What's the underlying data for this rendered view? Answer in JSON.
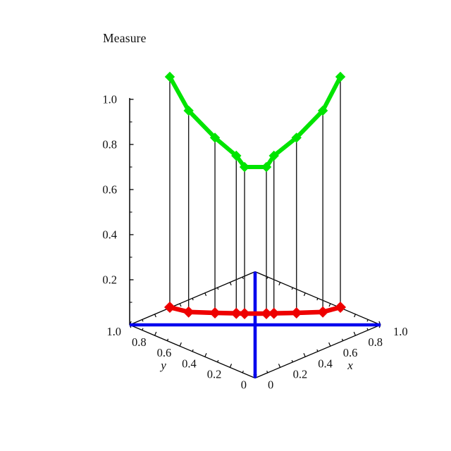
{
  "chart_data": {
    "type": "line",
    "projection": "3d",
    "title": "Measure",
    "axes": {
      "x": {
        "label": "x",
        "range": [
          0,
          1
        ],
        "tick_values": [
          0,
          0.2,
          0.4,
          0.6,
          0.8,
          1.0
        ],
        "tick_labels": [
          "0",
          "0.2",
          "0.4",
          "0.6",
          "0.8",
          "1.0"
        ],
        "minor_tick_step": 0.1
      },
      "y": {
        "label": "y",
        "range": [
          0,
          1
        ],
        "tick_values": [
          0,
          0.2,
          0.4,
          0.6,
          0.8,
          1.0
        ],
        "tick_labels": [
          "0",
          "0.2",
          "0.4",
          "0.6",
          "0.8",
          "1.0"
        ],
        "minor_tick_step": 0.1
      },
      "z": {
        "label": "Measure",
        "range": [
          0,
          1.0
        ],
        "tick_values": [
          0.2,
          0.4,
          0.6,
          0.8,
          1.0
        ],
        "tick_labels": [
          "0.2",
          "0.4",
          "0.6",
          "0.8",
          "1.0"
        ],
        "minor_tick_values": [
          0.1,
          0.3,
          0.5,
          0.7,
          0.9
        ]
      }
    },
    "series": [
      {
        "name": "measure-curve",
        "color": "#00E400",
        "marker": "diamond",
        "points": [
          {
            "x": 0.16,
            "y": 0.84,
            "z": 1.1
          },
          {
            "x": 0.235,
            "y": 0.765,
            "z": 0.95
          },
          {
            "x": 0.34,
            "y": 0.66,
            "z": 0.83
          },
          {
            "x": 0.425,
            "y": 0.575,
            "z": 0.75
          },
          {
            "x": 0.458,
            "y": 0.542,
            "z": 0.7
          },
          {
            "x": 0.545,
            "y": 0.455,
            "z": 0.7
          },
          {
            "x": 0.575,
            "y": 0.425,
            "z": 0.75
          },
          {
            "x": 0.665,
            "y": 0.335,
            "z": 0.83
          },
          {
            "x": 0.77,
            "y": 0.23,
            "z": 0.95
          },
          {
            "x": 0.84,
            "y": 0.16,
            "z": 1.1
          }
        ]
      },
      {
        "name": "base-curve",
        "color": "#EE0000",
        "marker": "diamond",
        "points": [
          {
            "x": 0.16,
            "y": 0.84,
            "z": 0.078
          },
          {
            "x": 0.235,
            "y": 0.765,
            "z": 0.057
          },
          {
            "x": 0.34,
            "y": 0.66,
            "z": 0.053
          },
          {
            "x": 0.425,
            "y": 0.575,
            "z": 0.051
          },
          {
            "x": 0.458,
            "y": 0.542,
            "z": 0.05
          },
          {
            "x": 0.545,
            "y": 0.455,
            "z": 0.05
          },
          {
            "x": 0.575,
            "y": 0.425,
            "z": 0.051
          },
          {
            "x": 0.665,
            "y": 0.335,
            "z": 0.053
          },
          {
            "x": 0.77,
            "y": 0.23,
            "z": 0.057
          },
          {
            "x": 0.84,
            "y": 0.16,
            "z": 0.078
          }
        ]
      }
    ],
    "reference_lines": [
      {
        "name": "antidiagonal-line",
        "color": "#0000EE",
        "from": {
          "x": 0,
          "y": 1,
          "z": 0
        },
        "to": {
          "x": 1,
          "y": 0,
          "z": 0
        }
      },
      {
        "name": "diagonal-line",
        "color": "#0000EE",
        "from": {
          "x": 1,
          "y": 1,
          "z": 0
        },
        "to": {
          "x": 0,
          "y": 0,
          "z": 0
        }
      }
    ],
    "drop_lines": {
      "between": [
        "measure-curve",
        "base-curve"
      ],
      "color": "#1a1a1a"
    },
    "colors": {
      "curve_green": "#00E400",
      "curve_red": "#EE0000",
      "reference_blue": "#0000EE",
      "axis_black": "#000000"
    },
    "legend": "none",
    "grid": "off"
  }
}
